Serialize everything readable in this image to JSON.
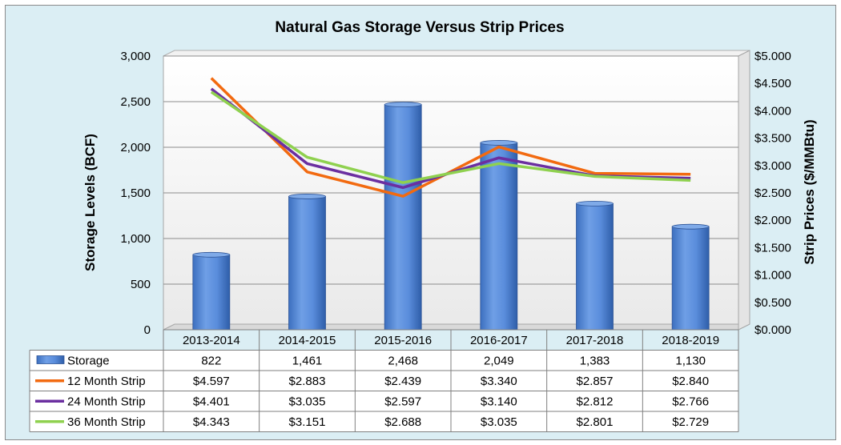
{
  "chart_data": {
    "type": "bar",
    "title": "Natural Gas Storage Versus Strip Prices",
    "categories": [
      "2013-2014",
      "2014-2015",
      "2015-2016",
      "2016-2017",
      "2017-2018",
      "2018-2019"
    ],
    "ylabel_left": "Storage Levels (BCF)",
    "ylabel_right": "Strip Prices ($/MMBtu)",
    "ylim_left": [
      0,
      3000
    ],
    "ylim_right": [
      0,
      5
    ],
    "yticks_left": [
      "0",
      "500",
      "1,000",
      "1,500",
      "2,000",
      "2,500",
      "3,000"
    ],
    "yticks_right": [
      "$0.000",
      "$0.500",
      "$1.000",
      "$1.500",
      "$2.000",
      "$2.500",
      "$3.000",
      "$3.500",
      "$4.000",
      "$4.500",
      "$5.000"
    ],
    "grid": true,
    "legend": "data-table",
    "bar_series": {
      "name": "Storage",
      "color": "#4f86d6",
      "values": [
        822,
        1461,
        2468,
        2049,
        1383,
        1130
      ],
      "labels": [
        "822",
        "1,461",
        "2,468",
        "2,049",
        "1,383",
        "1,130"
      ]
    },
    "line_series": [
      {
        "name": "12 Month Strip",
        "color": "#f26a10",
        "values": [
          4.597,
          2.883,
          2.439,
          3.34,
          2.857,
          2.84
        ],
        "labels": [
          "$4.597",
          "$2.883",
          "$2.439",
          "$3.340",
          "$2.857",
          "$2.840"
        ]
      },
      {
        "name": "24 Month Strip",
        "color": "#6b2fa0",
        "values": [
          4.401,
          3.035,
          2.597,
          3.14,
          2.812,
          2.766
        ],
        "labels": [
          "$4.401",
          "$3.035",
          "$2.597",
          "$3.140",
          "$2.812",
          "$2.766"
        ]
      },
      {
        "name": "36 Month Strip",
        "color": "#8fd14f",
        "values": [
          4.343,
          3.151,
          2.688,
          3.035,
          2.801,
          2.729
        ],
        "labels": [
          "$4.343",
          "$3.151",
          "$2.688",
          "$3.035",
          "$2.801",
          "$2.729"
        ]
      }
    ]
  }
}
